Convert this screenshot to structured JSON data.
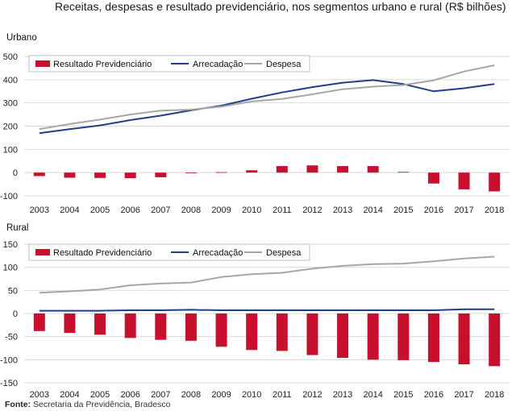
{
  "title": "Receitas, despesas e resultado previdenciário, nos segmentos urbano e rural (R$ bilhões)",
  "source_label": "Fonte:",
  "source_text": " Secretaria da Previdência, Bradesco",
  "colors": {
    "bar": "#c8102e",
    "arrecadacao": "#1f3e8c",
    "despesa": "#a6a6a6",
    "grid": "#d9d9d9"
  },
  "chart_data": [
    {
      "type": "bar+line",
      "panel_label": "Urbano",
      "categories": [
        "2003",
        "2004",
        "2005",
        "2006",
        "2007",
        "2008",
        "2009",
        "2010",
        "2011",
        "2012",
        "2013",
        "2014",
        "2015",
        "2016",
        "2017",
        "2018"
      ],
      "ylim": [
        -100,
        500
      ],
      "yticks": [
        -100,
        0,
        100,
        200,
        300,
        400,
        500
      ],
      "grid": true,
      "legend_position": "top-left",
      "series": [
        {
          "name": "Resultado Previdenciário",
          "kind": "bar",
          "values": [
            -15,
            -22,
            -23,
            -24,
            -20,
            -3,
            2,
            10,
            28,
            31,
            28,
            28,
            3,
            -47,
            -72,
            -81
          ]
        },
        {
          "name": "Arrecadação",
          "kind": "line",
          "values": [
            170,
            187,
            203,
            226,
            245,
            268,
            288,
            318,
            345,
            368,
            387,
            398,
            381,
            350,
            363,
            381
          ]
        },
        {
          "name": "Despesa",
          "kind": "line",
          "values": [
            187,
            209,
            228,
            250,
            267,
            271,
            284,
            306,
            317,
            337,
            359,
            370,
            377,
            397,
            435,
            462
          ]
        }
      ]
    },
    {
      "type": "bar+line",
      "panel_label": "Rural",
      "categories": [
        "2003",
        "2004",
        "2005",
        "2006",
        "2007",
        "2008",
        "2009",
        "2010",
        "2011",
        "2012",
        "2013",
        "2014",
        "2015",
        "2016",
        "2017",
        "2018"
      ],
      "ylim": [
        -150,
        150
      ],
      "yticks": [
        -150,
        -100,
        -50,
        0,
        50,
        100,
        150
      ],
      "grid": true,
      "legend_position": "top-left",
      "series": [
        {
          "name": "Resultado Previdenciário",
          "kind": "bar",
          "values": [
            -38,
            -42,
            -46,
            -53,
            -57,
            -59,
            -72,
            -79,
            -81,
            -90,
            -96,
            -100,
            -101,
            -105,
            -110,
            -114
          ]
        },
        {
          "name": "Arrecadação",
          "kind": "line",
          "values": [
            6,
            6,
            6,
            7,
            7,
            8,
            7,
            7,
            7,
            7,
            7,
            7,
            7,
            7,
            9,
            9
          ]
        },
        {
          "name": "Despesa",
          "kind": "line",
          "values": [
            45,
            48,
            52,
            61,
            65,
            67,
            79,
            85,
            88,
            97,
            103,
            107,
            108,
            113,
            119,
            123
          ]
        }
      ]
    }
  ]
}
